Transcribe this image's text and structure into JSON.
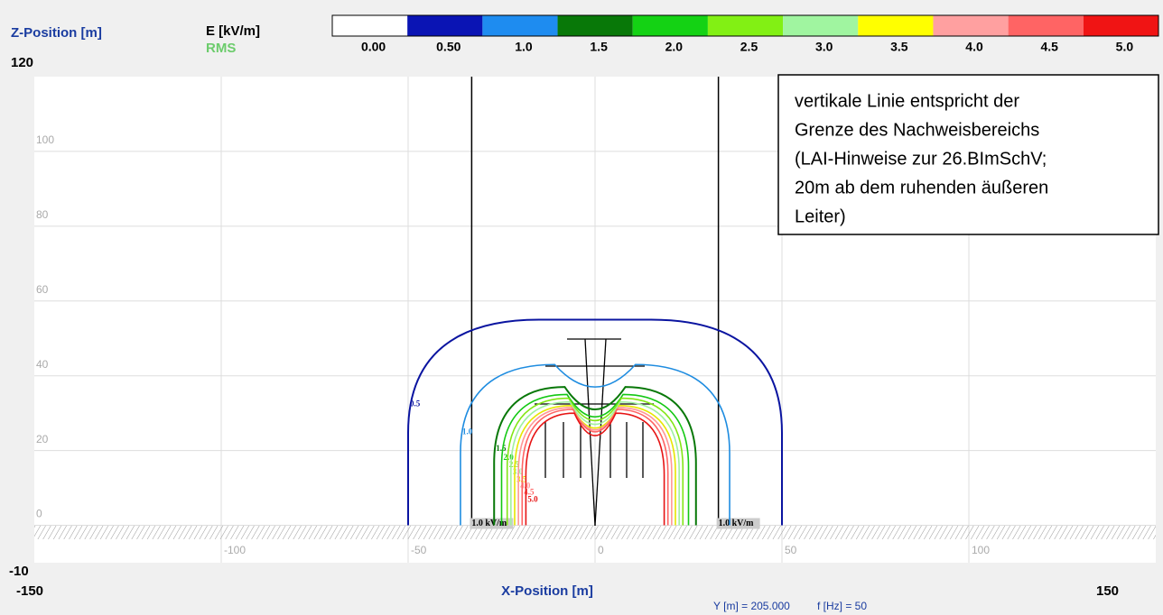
{
  "chart_data": {
    "type": "contour",
    "y_label": "Z-Position [m]",
    "x_label": "X-Position [m]",
    "quantity": "E [kV/m]",
    "mode": "RMS",
    "info": [
      "Y [m] = 205.000",
      "f [Hz] = 50"
    ],
    "xlim": [
      -150,
      150
    ],
    "ylim": [
      -10,
      120
    ],
    "xticks": [
      -100,
      -50,
      0,
      50,
      100
    ],
    "yticks": [
      0,
      20,
      40,
      60,
      80,
      100
    ],
    "grid": true,
    "colorbar": {
      "ticks": [
        {
          "value": 0,
          "label": "0.00"
        },
        {
          "value": 0.5,
          "label": "0.50"
        },
        {
          "value": 1,
          "label": "1.0"
        },
        {
          "value": 1.5,
          "label": "1.5"
        },
        {
          "value": 2,
          "label": "2.0"
        },
        {
          "value": 2.5,
          "label": "2.5"
        },
        {
          "value": 3,
          "label": "3.0"
        },
        {
          "value": 3.5,
          "label": "3.5"
        },
        {
          "value": 4,
          "label": "4.0"
        },
        {
          "value": 4.5,
          "label": "4.5"
        },
        {
          "value": 5,
          "label": "5.0"
        }
      ],
      "colors": [
        "#ffffff",
        "#0a14b4",
        "#1e8cf0",
        "#087808",
        "#14d214",
        "#82f014",
        "#a0f5a0",
        "#ffff00",
        "#ffa0a0",
        "#ff6464",
        "#f01414"
      ]
    },
    "contours": {
      "levels": [
        0.5,
        1,
        1.5,
        2,
        2.5,
        3,
        3.5,
        4,
        4.5,
        5
      ],
      "value_labels": [
        "0.5",
        "1.0",
        "1.5",
        "2.0",
        "2.5",
        "3.0",
        "3.5",
        "4.0",
        "4.5",
        "5.0"
      ],
      "colors": [
        "#0a14a0",
        "#1e8ce0",
        "#087808",
        "#14c814",
        "#82e614",
        "#a0f0a0",
        "#e6e600",
        "#ff9696",
        "#ff6464",
        "#e61414"
      ]
    },
    "boundaries": [
      -33,
      33
    ],
    "ground_labels": [
      "1.0 kV/m",
      "1.0 kV/m"
    ],
    "annotation": [
      "vertikale Linie entspricht der",
      "Grenze des Nachweisbereichs",
      "(LAI-Hinweise zur 26.BImSchV;",
      "20m ab dem ruhenden äußeren",
      "Leiter)"
    ]
  }
}
